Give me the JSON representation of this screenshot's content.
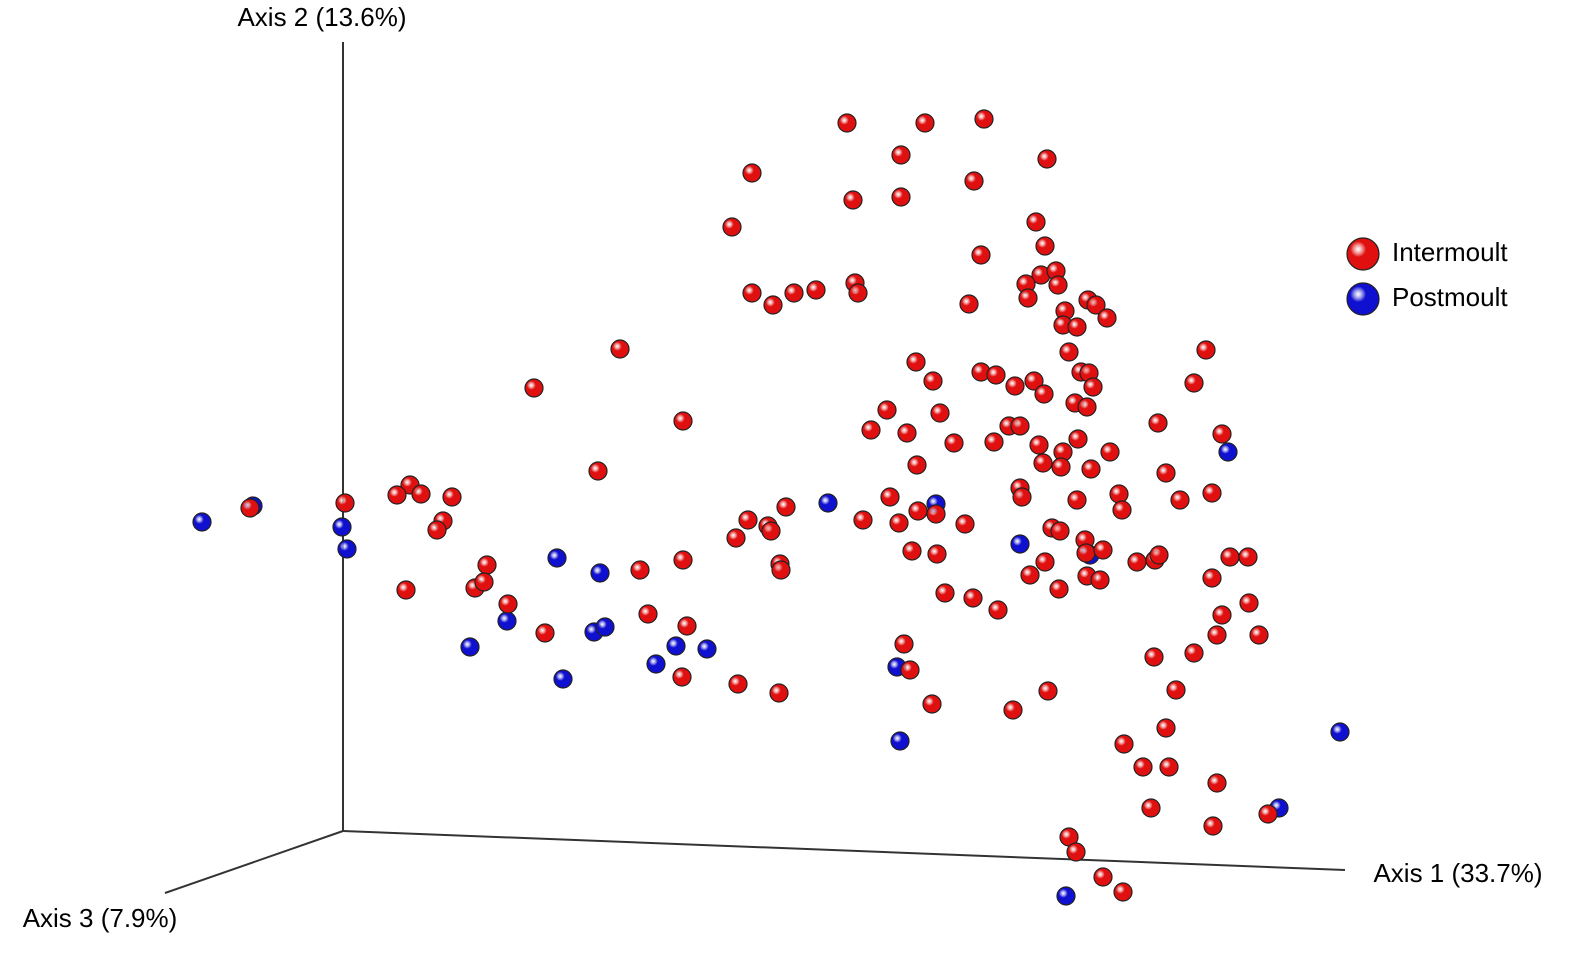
{
  "chart_data": {
    "type": "scatter",
    "x_label": "Axis 1 (33.7%)",
    "y_label": "Axis 2 (13.6%)",
    "z_label": "Axis 3 (7.9%)",
    "legend": "right",
    "series": [
      {
        "name": "Postmoult",
        "color": "#1010d0",
        "x": [
          -14.1,
          -9.0,
          -0.1,
          0.4,
          21.4,
          25.7,
          16.4,
          12.7,
          22.0,
          25.1,
          26.2,
          31.3,
          33.3,
          36.4,
          48.5,
          59.3,
          55.4,
          55.7,
          67.7,
          74.7,
          88.5,
          99.7,
          93.6,
          72.3
        ],
        "y": [
          30.9,
          32.5,
          30.4,
          28.2,
          27.3,
          25.8,
          21.0,
          18.4,
          15.2,
          19.9,
          20.4,
          16.7,
          18.5,
          18.2,
          32.8,
          32.7,
          16.4,
          9.0,
          28.7,
          27.6,
          37.9,
          9.9,
          2.3,
          -6.5
        ]
      },
      {
        "name": "Intermoult",
        "color": "#e01010",
        "x": [
          50.4,
          58.2,
          64.1,
          55.8,
          70.4,
          40.9,
          63.1,
          51.0,
          55.8,
          38.9,
          69.3,
          70.2,
          63.8,
          69.8,
          71.3,
          68.3,
          71.5,
          68.5,
          74.5,
          75.3,
          40.9,
          43.0,
          45.1,
          47.3,
          51.2,
          51.5,
          62.6,
          72.2,
          76.4,
          72.0,
          73.4,
          27.7,
          72.6,
          86.3,
          19.1,
          57.3,
          59.0,
          63.8,
          65.3,
          67.2,
          69.1,
          70.1,
          73.8,
          74.6,
          75.0,
          85.1,
          34.0,
          54.4,
          59.7,
          73.2,
          74.4,
          66.6,
          67.7,
          81.5,
          52.8,
          56.4,
          61.1,
          65.1,
          69.6,
          72.0,
          73.5,
          76.7,
          87.9,
          25.5,
          57.4,
          70.0,
          71.8,
          74.8,
          82.3,
          0.2,
          6.7,
          5.4,
          7.8,
          10.9,
          -9.3,
          10.0,
          9.4,
          40.5,
          42.5,
          42.8,
          44.3,
          39.3,
          52.0,
          54.7,
          55.6,
          57.5,
          59.3,
          62.2,
          67.7,
          67.9,
          73.4,
          77.6,
          77.9,
          83.7,
          86.9,
          70.9,
          71.7,
          74.2,
          74.3,
          76.0,
          56.9,
          59.4,
          70.2,
          79.4,
          81.2,
          81.6,
          88.7,
          90.5,
          14.4,
          13.2,
          14.1,
          6.3,
          29.7,
          34.0,
          43.7,
          43.8,
          68.7,
          71.6,
          74.4,
          75.7,
          86.9,
          60.2,
          63.0,
          65.5,
          16.5,
          20.2,
          30.5,
          34.4,
          87.9,
          90.6,
          87.4,
          91.6,
          56.1,
          56.7,
          85.1,
          81.1,
          33.9,
          39.5,
          43.6,
          58.9,
          67.0,
          70.5,
          83.3,
          82.3,
          78.1,
          80.0,
          82.6,
          87.4,
          80.8,
          87.0,
          92.5,
          72.6,
          73.3,
          76.0,
          78.0
        ],
        "y": [
          70.8,
          70.8,
          71.2,
          67.6,
          67.2,
          65.8,
          65.0,
          63.1,
          63.4,
          60.4,
          60.9,
          58.5,
          57.6,
          55.6,
          56.0,
          54.7,
          54.6,
          53.3,
          53.1,
          52.6,
          53.8,
          52.6,
          53.8,
          54.1,
          54.8,
          53.8,
          52.7,
          52.0,
          51.3,
          50.6,
          50.4,
          48.2,
          47.9,
          48.1,
          44.3,
          46.9,
          45.0,
          45.9,
          45.6,
          44.5,
          45.0,
          43.7,
          45.9,
          45.8,
          44.4,
          44.8,
          41.0,
          42.1,
          41.8,
          42.8,
          42.4,
          40.5,
          40.5,
          40.8,
          40.1,
          39.8,
          38.8,
          38.9,
          38.6,
          37.9,
          39.2,
          37.9,
          39.7,
          36.0,
          36.6,
          36.8,
          36.4,
          36.2,
          35.8,
          32.8,
          34.6,
          33.6,
          33.7,
          33.4,
          32.3,
          31.0,
          30.1,
          31.1,
          30.5,
          30.0,
          32.4,
          29.3,
          31.1,
          33.4,
          30.8,
          32.0,
          31.7,
          30.7,
          34.3,
          33.4,
          33.1,
          33.7,
          32.1,
          33.1,
          33.8,
          30.3,
          30.0,
          29.1,
          27.8,
          28.1,
          28.0,
          27.7,
          26.9,
          26.9,
          27.1,
          27.6,
          27.4,
          27.4,
          26.6,
          24.3,
          24.9,
          24.1,
          26.1,
          27.1,
          26.7,
          26.1,
          25.6,
          24.2,
          25.5,
          25.1,
          25.3,
          23.8,
          23.3,
          22.1,
          22.7,
          19.8,
          21.7,
          20.5,
          21.6,
          22.8,
          19.6,
          19.6,
          18.7,
          16.1,
          17.8,
          17.4,
          15.4,
          14.7,
          13.8,
          12.7,
          12.1,
          14.0,
          14.1,
          10.3,
          8.7,
          6.4,
          6.4,
          4.8,
          2.3,
          0.5,
          1.7,
          -0.6,
          -2.1,
          -4.6,
          -6.1
        ]
      }
    ]
  }
}
